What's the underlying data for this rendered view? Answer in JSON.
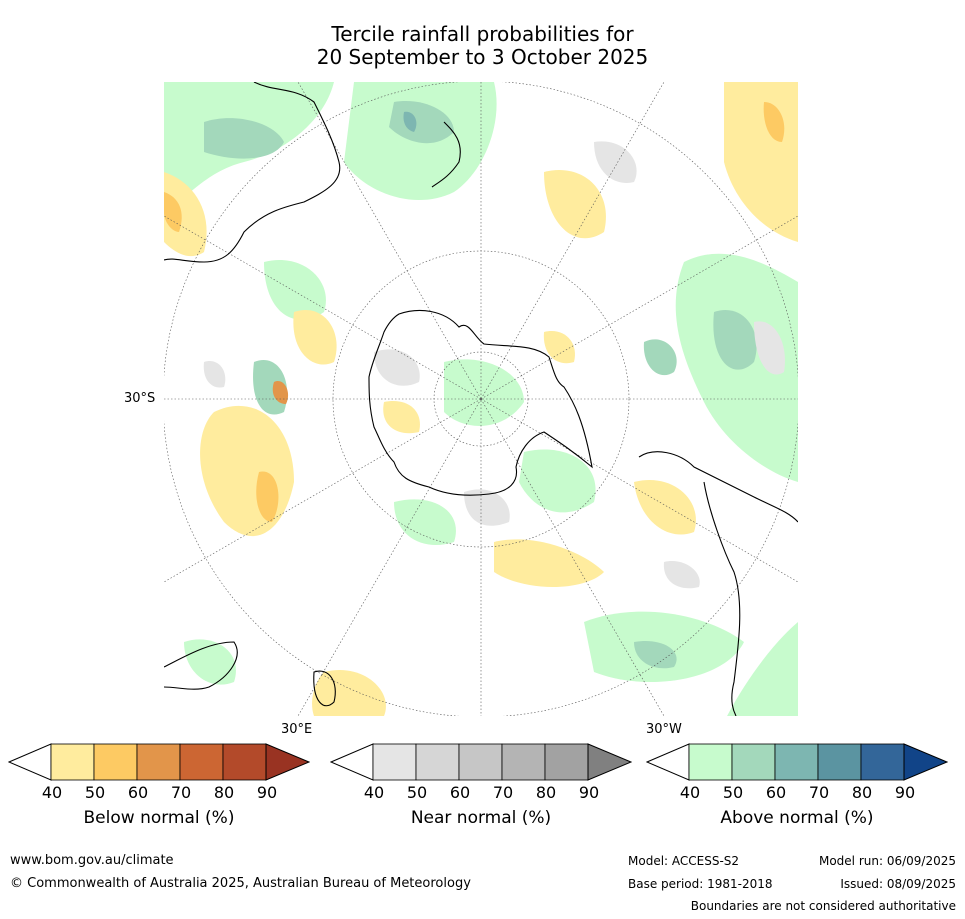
{
  "title": {
    "line1": "Tercile rainfall probabilities for",
    "line2": "20 September to 3 October 2025"
  },
  "map": {
    "projection": "south-polar-stereographic",
    "lat_labels": [
      "30°S"
    ],
    "lon_labels": [
      "30°E",
      "30°W"
    ]
  },
  "legend": {
    "below": {
      "label": "Below normal (%)",
      "ticks": [
        "40",
        "50",
        "60",
        "70",
        "80",
        "90"
      ],
      "colors": [
        "#ffffff",
        "#ffec9e",
        "#fdca63",
        "#e2954a",
        "#cc6633",
        "#b34a2a",
        "#993322"
      ]
    },
    "near": {
      "label": "Near normal (%)",
      "ticks": [
        "40",
        "50",
        "60",
        "70",
        "80",
        "90"
      ],
      "colors": [
        "#ffffff",
        "#e5e5e5",
        "#d6d6d6",
        "#c6c6c6",
        "#b4b4b4",
        "#a2a2a2",
        "#808080"
      ]
    },
    "above": {
      "label": "Above normal (%)",
      "ticks": [
        "40",
        "50",
        "60",
        "70",
        "80",
        "90"
      ],
      "colors": [
        "#ffffff",
        "#c7fbcd",
        "#a3d8bb",
        "#7db6b1",
        "#5b94a1",
        "#336699",
        "#114488"
      ]
    }
  },
  "footer": {
    "url": "www.bom.gov.au/climate",
    "copyright": "© Commonwealth of Australia 2025, Australian Bureau of Meteorology",
    "model": "Model: ACCESS-S2",
    "base_period": "Base period: 1981-2018",
    "model_run": "Model run: 06/09/2025",
    "issued": "Issued: 08/09/2025",
    "disclaimer": "Boundaries are not considered authoritative"
  }
}
